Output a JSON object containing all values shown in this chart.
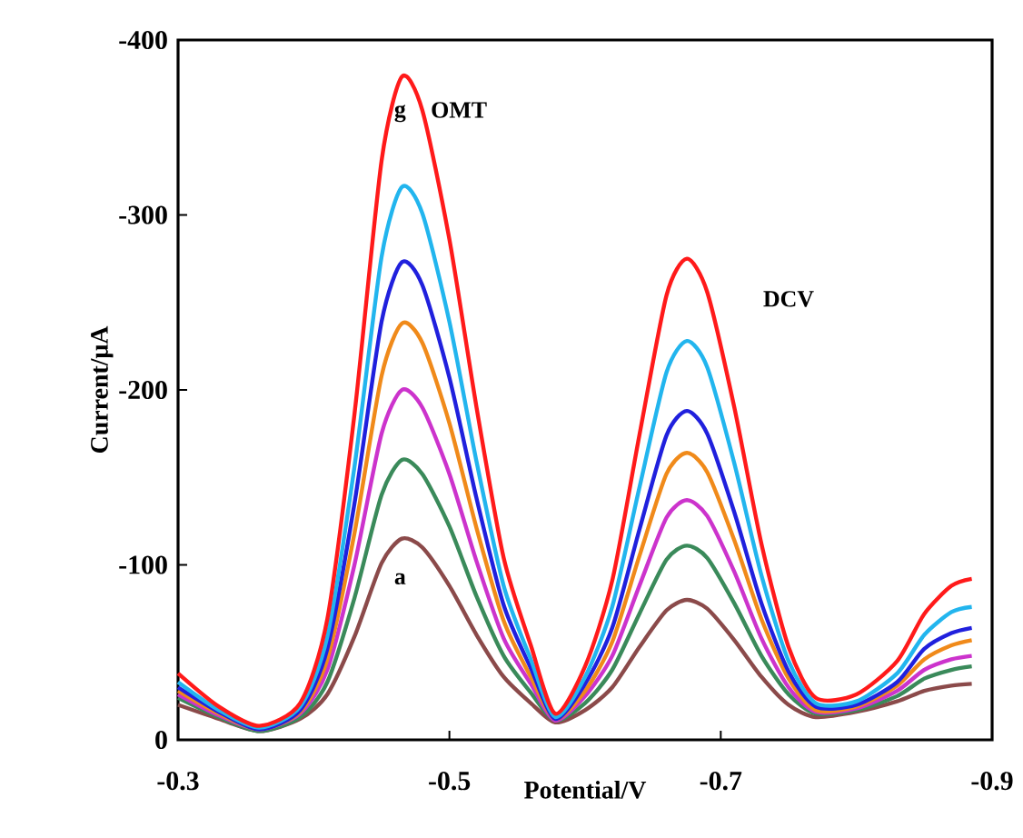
{
  "chart_data": {
    "type": "line",
    "xlabel": "Potential/V",
    "ylabel": "Current/μA",
    "xlim": [
      -0.3,
      -0.9
    ],
    "ylim": [
      0,
      -400
    ],
    "xticks": [
      -0.3,
      -0.5,
      -0.7,
      -0.9
    ],
    "yticks": [
      0,
      -100,
      -200,
      -300,
      -400
    ],
    "marker": "none",
    "line_style": "solid",
    "x": [
      -0.3,
      -0.33,
      -0.36,
      -0.39,
      -0.41,
      -0.43,
      -0.45,
      -0.465,
      -0.48,
      -0.5,
      -0.52,
      -0.54,
      -0.56,
      -0.578,
      -0.6,
      -0.62,
      -0.64,
      -0.66,
      -0.675,
      -0.69,
      -0.71,
      -0.73,
      -0.75,
      -0.77,
      -0.8,
      -0.83,
      -0.85,
      -0.87,
      -0.885
    ],
    "series": [
      {
        "color": "#8b4a4a",
        "values": [
          -20,
          -12,
          -5,
          -12,
          -26,
          -59,
          -101,
          -115,
          -110,
          -88,
          -60,
          -36,
          -21,
          -10,
          -17,
          -30,
          -53,
          -74,
          -80,
          -75,
          -57,
          -36,
          -20,
          -13,
          -16,
          -22,
          -28,
          -31,
          -32
        ]
      },
      {
        "color": "#3a8a5a",
        "values": [
          -24,
          -13,
          -5,
          -13,
          -33,
          -81,
          -140,
          -160,
          -152,
          -122,
          -82,
          -48,
          -27,
          -11,
          -21,
          -40,
          -72,
          -103,
          -111,
          -104,
          -78,
          -48,
          -26,
          -15,
          -17,
          -25,
          -35,
          -40,
          -42
        ]
      },
      {
        "color": "#cc33cc",
        "values": [
          -26,
          -14,
          -6,
          -15,
          -40,
          -100,
          -175,
          -200,
          -190,
          -152,
          -102,
          -58,
          -32,
          -11,
          -25,
          -48,
          -88,
          -127,
          -137,
          -128,
          -96,
          -58,
          -30,
          -16,
          -18,
          -28,
          -40,
          -46,
          -48
        ]
      },
      {
        "color": "#f08a1a",
        "values": [
          -28,
          -15,
          -6,
          -16,
          -46,
          -118,
          -208,
          -238,
          -227,
          -181,
          -121,
          -68,
          -36,
          -12,
          -28,
          -56,
          -105,
          -152,
          -164,
          -153,
          -114,
          -69,
          -35,
          -17,
          -19,
          -31,
          -46,
          -54,
          -57
        ]
      },
      {
        "color": "#2020dd",
        "values": [
          -30,
          -16,
          -6,
          -17,
          -52,
          -135,
          -239,
          -273,
          -260,
          -207,
          -138,
          -77,
          -41,
          -12,
          -32,
          -64,
          -120,
          -174,
          -188,
          -175,
          -130,
          -78,
          -39,
          -19,
          -20,
          -33,
          -52,
          -61,
          -64
        ]
      },
      {
        "color": "#22b5ee",
        "values": [
          -33,
          -17,
          -7,
          -19,
          -59,
          -156,
          -276,
          -316,
          -301,
          -239,
          -159,
          -88,
          -46,
          -13,
          -36,
          -76,
          -144,
          -210,
          -228,
          -213,
          -158,
          -94,
          -45,
          -21,
          -22,
          -38,
          -60,
          -73,
          -76
        ]
      },
      {
        "color": "#ff1a1a",
        "values": [
          -38,
          -19,
          -8,
          -21,
          -69,
          -186,
          -331,
          -379,
          -360,
          -286,
          -190,
          -104,
          -54,
          -15,
          -42,
          -91,
          -174,
          -254,
          -275,
          -256,
          -190,
          -112,
          -53,
          -24,
          -26,
          -45,
          -72,
          -88,
          -92
        ]
      }
    ],
    "annotations": [
      "g",
      "OMT",
      "DCV",
      "a"
    ]
  }
}
